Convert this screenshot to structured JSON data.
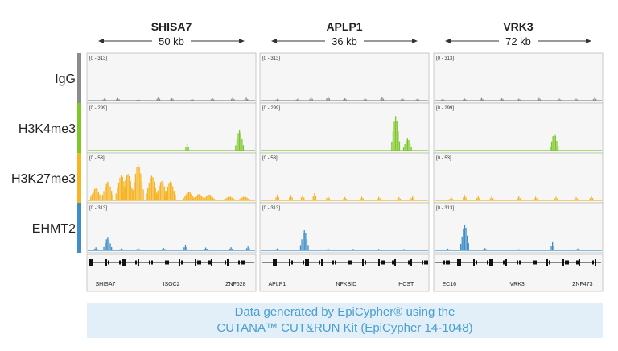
{
  "chart_data": {
    "type": "area",
    "title": "",
    "loci": [
      {
        "gene": "SHISA7",
        "span": "50 kb",
        "annotations": [
          "SHISA7",
          "ISOC2",
          "ZNF628"
        ]
      },
      {
        "gene": "APLP1",
        "span": "36 kb",
        "annotations": [
          "APLP1",
          "NFKBID",
          "HCST"
        ]
      },
      {
        "gene": "VRK3",
        "span": "72 kb",
        "annotations": [
          "EC16",
          "VRK3",
          "ZNF473"
        ]
      }
    ],
    "tracks": [
      {
        "name": "IgG",
        "color": "#8c8c8c",
        "range": "[0 - 313]",
        "ymax": 313,
        "peaks": [
          [
            [
              0.1,
              18
            ],
            [
              0.18,
              22
            ],
            [
              0.3,
              15
            ],
            [
              0.42,
              30
            ],
            [
              0.5,
              20
            ],
            [
              0.62,
              18
            ],
            [
              0.74,
              22
            ],
            [
              0.86,
              25
            ],
            [
              0.94,
              30
            ]
          ],
          [
            [
              0.1,
              15
            ],
            [
              0.22,
              20
            ],
            [
              0.3,
              28
            ],
            [
              0.4,
              35
            ],
            [
              0.5,
              25
            ],
            [
              0.62,
              20
            ],
            [
              0.72,
              28
            ],
            [
              0.84,
              22
            ],
            [
              0.93,
              18
            ]
          ],
          [
            [
              0.05,
              20
            ],
            [
              0.18,
              18
            ],
            [
              0.28,
              22
            ],
            [
              0.4,
              25
            ],
            [
              0.5,
              18
            ],
            [
              0.62,
              22
            ],
            [
              0.74,
              20
            ],
            [
              0.84,
              18
            ],
            [
              0.95,
              25
            ]
          ]
        ]
      },
      {
        "name": "H3K4me3",
        "color": "#7dc729",
        "range": "[0 - 299]",
        "ymax": 299,
        "peaks": [
          [
            [
              0.59,
              55
            ],
            [
              0.9,
              160
            ]
          ],
          [
            [
              0.8,
              270
            ],
            [
              0.87,
              120
            ]
          ],
          [
            [
              0.71,
              170
            ]
          ]
        ]
      },
      {
        "name": "H3K27me3",
        "color": "#f6b422",
        "range": "[0 - 53]",
        "ymax": 53,
        "peaks": [
          [
            [
              0.05,
              18
            ],
            [
              0.12,
              26
            ],
            [
              0.2,
              44
            ],
            [
              0.24,
              40
            ],
            [
              0.3,
              50
            ],
            [
              0.38,
              42
            ],
            [
              0.44,
              30
            ],
            [
              0.49,
              26
            ],
            [
              0.6,
              14
            ],
            [
              0.66,
              10
            ],
            [
              0.72,
              8
            ],
            [
              0.84,
              6
            ],
            [
              0.93,
              6
            ]
          ],
          [
            [
              0.1,
              8
            ],
            [
              0.18,
              10
            ],
            [
              0.25,
              8
            ],
            [
              0.32,
              10
            ],
            [
              0.4,
              8
            ],
            [
              0.5,
              5
            ],
            [
              0.6,
              5
            ],
            [
              0.7,
              6
            ],
            [
              0.82,
              5
            ],
            [
              0.9,
              6
            ]
          ],
          [
            [
              0.1,
              6
            ],
            [
              0.18,
              8
            ],
            [
              0.26,
              6
            ],
            [
              0.34,
              7
            ],
            [
              0.5,
              6
            ],
            [
              0.6,
              5
            ],
            [
              0.72,
              6
            ],
            [
              0.84,
              5
            ],
            [
              0.93,
              6
            ]
          ]
        ]
      },
      {
        "name": "EHMT2",
        "color": "#3f8ec7",
        "range": "[0 - 313]",
        "ymax": 313,
        "peaks": [
          [
            [
              0.12,
              110
            ],
            [
              0.05,
              25
            ],
            [
              0.2,
              20
            ],
            [
              0.3,
              18
            ],
            [
              0.45,
              20
            ],
            [
              0.58,
              60
            ],
            [
              0.7,
              25
            ],
            [
              0.85,
              25
            ],
            [
              0.95,
              40
            ]
          ],
          [
            [
              0.26,
              165
            ],
            [
              0.1,
              20
            ],
            [
              0.4,
              15
            ],
            [
              0.55,
              12
            ],
            [
              0.7,
              15
            ],
            [
              0.85,
              12
            ]
          ],
          [
            [
              0.18,
              270
            ],
            [
              0.08,
              15
            ],
            [
              0.3,
              18
            ],
            [
              0.5,
              12
            ],
            [
              0.7,
              75
            ],
            [
              0.85,
              15
            ]
          ]
        ]
      }
    ]
  },
  "caption": {
    "line1": "Data generated by EpiCypher® using the",
    "line2": "CUTANA™ CUT&RUN Kit (EpiCypher 14-1048)"
  }
}
